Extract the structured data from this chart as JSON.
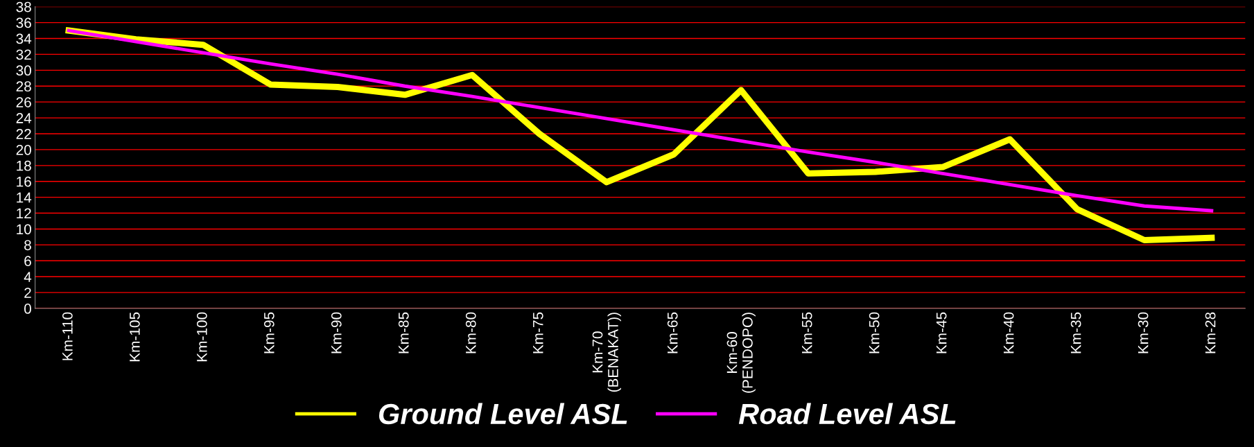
{
  "chart_data": {
    "type": "line",
    "categories": [
      "Km-110",
      "Km-105",
      "Km-100",
      "Km-95",
      "Km-90",
      "Km-85",
      "Km-80",
      "Km-75",
      "Km-70\n(BENAKAT))",
      "Km-65",
      "Km-60\n(PENDOPO)",
      "Km-55",
      "Km-50",
      "Km-45",
      "Km-40",
      "Km-35",
      "Km-30",
      "Km-28"
    ],
    "series": [
      {
        "name": "Ground Level ASL",
        "color": "#ffff00",
        "values": [
          35.0,
          33.9,
          33.2,
          28.2,
          27.9,
          26.9,
          29.4,
          22.0,
          15.9,
          19.4,
          27.5,
          17.0,
          17.2,
          17.8,
          21.3,
          12.5,
          8.6,
          8.9
        ]
      },
      {
        "name": "Road Level ASL",
        "color": "#ff00ff",
        "values": [
          35.0,
          33.6,
          32.2,
          30.8,
          29.5,
          28.0,
          26.7,
          25.3,
          23.9,
          22.5,
          21.1,
          19.7,
          18.4,
          17.0,
          15.6,
          14.2,
          12.9,
          12.3
        ]
      }
    ],
    "ylim": [
      0,
      38
    ],
    "yticks": [
      0,
      2,
      4,
      6,
      8,
      10,
      12,
      14,
      16,
      18,
      20,
      22,
      24,
      26,
      28,
      30,
      32,
      34,
      36,
      38
    ],
    "grid": "y",
    "legend": "bottom",
    "marker": "none",
    "line_style": "solid"
  }
}
